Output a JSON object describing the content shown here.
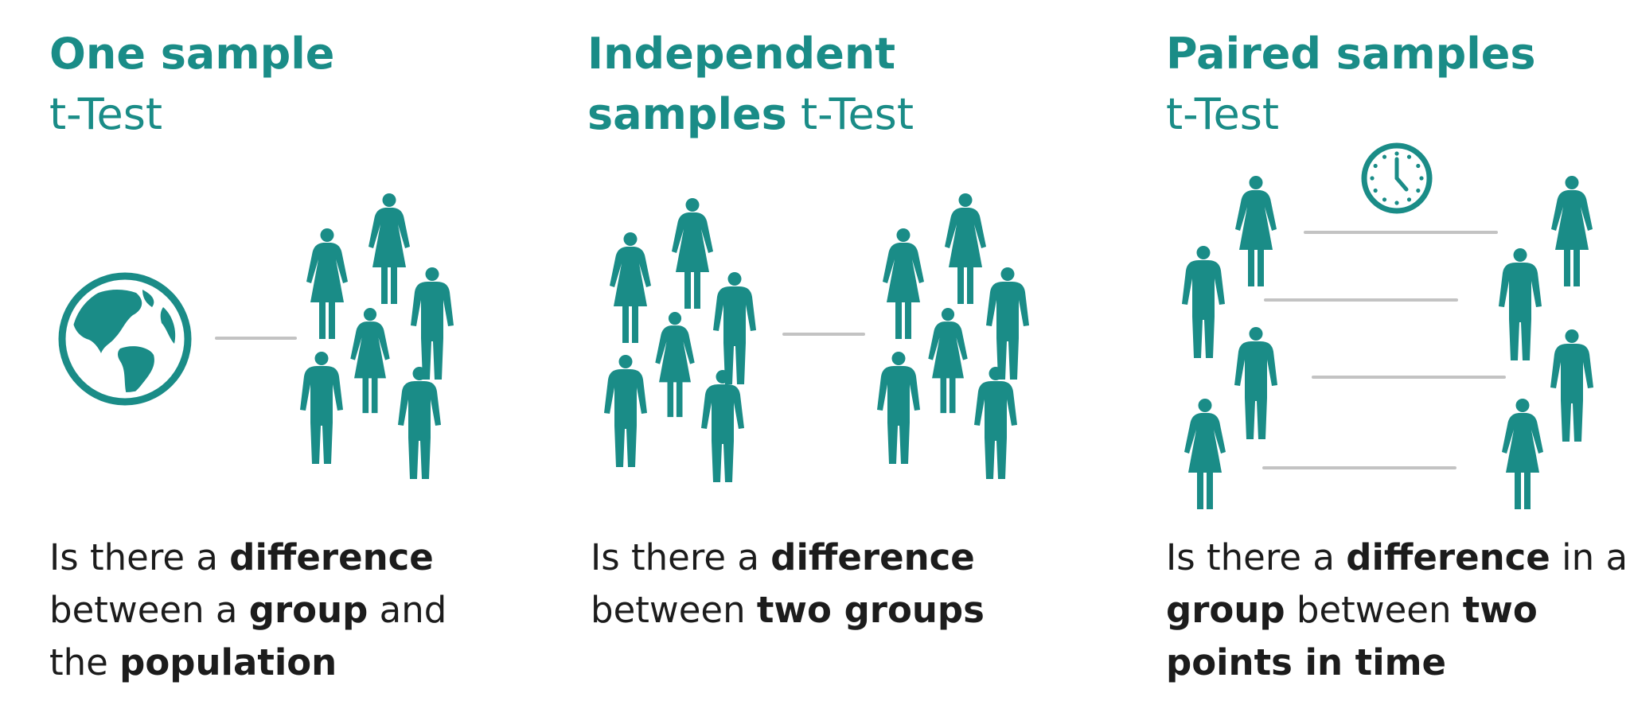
{
  "colors": {
    "teal": "#1a8c87",
    "line": "#c3c3c3",
    "text": "#1c1c1c"
  },
  "panels": [
    {
      "title_bold": "One sample",
      "title_line2_bold": "",
      "title_line2_regular": "t-Test",
      "desc": [
        [
          "Is there a ",
          "difference",
          ""
        ],
        [
          "between a ",
          "group",
          " and"
        ],
        [
          "the ",
          "population",
          ""
        ]
      ],
      "icons": [
        "globe-icon",
        "female-person-icon",
        "male-person-icon"
      ]
    },
    {
      "title_bold": "Independent",
      "title_line2_bold": "samples",
      "title_line2_regular": " t-Test",
      "desc": [
        [
          "Is there a ",
          "difference",
          ""
        ],
        [
          "between ",
          "two groups",
          ""
        ]
      ],
      "icons": [
        "female-person-icon",
        "male-person-icon"
      ]
    },
    {
      "title_bold": "Paired samples",
      "title_line2_bold": "",
      "title_line2_regular": "t-Test",
      "desc": [
        [
          "Is there a ",
          "difference",
          " in a"
        ],
        [
          "",
          "group",
          " between "
        ],
        [
          "",
          "points in time",
          ""
        ]
      ],
      "desc_line2_bold_tail": "two",
      "icons": [
        "clock-icon",
        "female-person-icon",
        "male-person-icon"
      ]
    }
  ]
}
